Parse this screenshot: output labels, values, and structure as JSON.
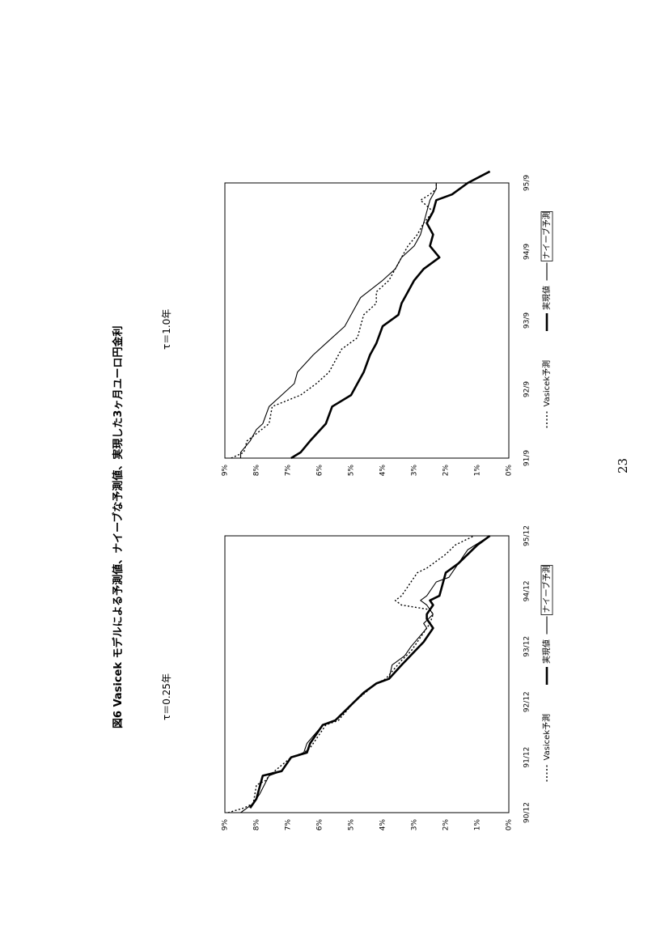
{
  "figure": {
    "title": "図6 Vasicek モデルによる予測値、ナイーブな予測値、実現した3ヶ月ユーロ円金利"
  },
  "page_number": "23",
  "legend_labels": {
    "vasicek": "Vasicek予測",
    "actual": "実現値",
    "naive": "ナイーブ予測"
  },
  "chart_data": [
    {
      "type": "line",
      "title": "τ＝0.25年",
      "xlabel": "",
      "ylabel": "",
      "x_range": [
        0,
        60
      ],
      "x_ticks": [
        {
          "pos": 0,
          "label": "90/12"
        },
        {
          "pos": 12,
          "label": "91/12"
        },
        {
          "pos": 24,
          "label": "92/12"
        },
        {
          "pos": 36,
          "label": "93/12"
        },
        {
          "pos": 48,
          "label": "94/12"
        },
        {
          "pos": 60,
          "label": "95/12"
        }
      ],
      "ylim": [
        0,
        9
      ],
      "y_ticks": [
        "0%",
        "1%",
        "2%",
        "3%",
        "4%",
        "5%",
        "6%",
        "7%",
        "8%",
        "9%"
      ],
      "grid": false,
      "legend": "bottom",
      "series": [
        {
          "name": "Vasicek予測",
          "style": "dotted",
          "points": [
            [
              0,
              8.9
            ],
            [
              1,
              8.4
            ],
            [
              2,
              8.1
            ],
            [
              6,
              8.0
            ],
            [
              7,
              7.7
            ],
            [
              8,
              7.6
            ],
            [
              12,
              6.9
            ],
            [
              13,
              6.5
            ],
            [
              14,
              6.3
            ],
            [
              19,
              5.8
            ],
            [
              20,
              5.4
            ],
            [
              24,
              4.9
            ],
            [
              28,
              4.2
            ],
            [
              29,
              3.9
            ],
            [
              33,
              3.4
            ],
            [
              35,
              3.1
            ],
            [
              41,
              2.5
            ],
            [
              43,
              2.4
            ],
            [
              44,
              2.5
            ],
            [
              45,
              3.4
            ],
            [
              46,
              3.6
            ],
            [
              47,
              3.4
            ],
            [
              50,
              3.1
            ],
            [
              52,
              2.9
            ],
            [
              53,
              2.6
            ],
            [
              56,
              2.0
            ],
            [
              58,
              1.7
            ],
            [
              60,
              1.1
            ]
          ]
        },
        {
          "name": "実現値",
          "style": "thick",
          "points": [
            [
              1,
              8.2
            ],
            [
              3,
              8.0
            ],
            [
              8,
              7.8
            ],
            [
              9,
              7.2
            ],
            [
              12,
              6.9
            ],
            [
              13,
              6.4
            ],
            [
              15,
              6.3
            ],
            [
              19,
              5.9
            ],
            [
              20,
              5.5
            ],
            [
              24,
              4.9
            ],
            [
              26,
              4.6
            ],
            [
              28,
              4.2
            ],
            [
              29,
              3.8
            ],
            [
              32,
              3.4
            ],
            [
              37,
              2.7
            ],
            [
              38,
              2.6
            ],
            [
              40,
              2.4
            ],
            [
              42,
              2.6
            ],
            [
              43,
              2.6
            ],
            [
              45,
              2.4
            ],
            [
              46,
              2.5
            ],
            [
              47,
              2.2
            ],
            [
              52,
              2.0
            ],
            [
              54,
              1.6
            ],
            [
              58,
              1.0
            ],
            [
              60,
              0.6
            ]
          ]
        },
        {
          "name": "ナイーブ予測",
          "style": "thin",
          "points": [
            [
              0,
              8.5
            ],
            [
              1,
              8.3
            ],
            [
              2,
              8.1
            ],
            [
              4,
              7.9
            ],
            [
              8,
              7.6
            ],
            [
              9,
              7.2
            ],
            [
              12,
              6.9
            ],
            [
              13,
              6.5
            ],
            [
              15,
              6.4
            ],
            [
              19,
              5.9
            ],
            [
              20,
              5.5
            ],
            [
              24,
              4.9
            ],
            [
              26,
              4.6
            ],
            [
              28,
              4.2
            ],
            [
              29,
              3.8
            ],
            [
              32,
              3.7
            ],
            [
              34,
              3.3
            ],
            [
              36,
              3.1
            ],
            [
              40,
              2.6
            ],
            [
              41,
              2.7
            ],
            [
              43,
              2.4
            ],
            [
              45,
              2.6
            ],
            [
              46,
              2.8
            ],
            [
              47,
              2.6
            ],
            [
              50,
              2.3
            ],
            [
              51,
              1.9
            ],
            [
              54,
              1.6
            ],
            [
              57,
              1.3
            ],
            [
              60,
              0.6
            ]
          ]
        }
      ]
    },
    {
      "type": "line",
      "title": "τ＝1.0年",
      "xlabel": "",
      "ylabel": "",
      "x_range": [
        0,
        48
      ],
      "x_ticks": [
        {
          "pos": 0,
          "label": "91/9"
        },
        {
          "pos": 12,
          "label": "92/9"
        },
        {
          "pos": 24,
          "label": "93/9"
        },
        {
          "pos": 36,
          "label": "94/9"
        },
        {
          "pos": 48,
          "label": "95/9"
        }
      ],
      "ylim": [
        0,
        9
      ],
      "y_ticks": [
        "0%",
        "1%",
        "2%",
        "3%",
        "4%",
        "5%",
        "6%",
        "7%",
        "8%",
        "9%"
      ],
      "grid": false,
      "legend": "bottom",
      "series": [
        {
          "name": "Vasicek予測",
          "style": "dotted",
          "points": [
            [
              0,
              8.8
            ],
            [
              1,
              8.4
            ],
            [
              3,
              8.3
            ],
            [
              6,
              7.6
            ],
            [
              9,
              7.5
            ],
            [
              11,
              6.6
            ],
            [
              13,
              6.1
            ],
            [
              15,
              5.7
            ],
            [
              19,
              5.3
            ],
            [
              21,
              4.8
            ],
            [
              23,
              4.7
            ],
            [
              25,
              4.6
            ],
            [
              27,
              4.2
            ],
            [
              29,
              4.2
            ],
            [
              31,
              3.8
            ],
            [
              33,
              3.6
            ],
            [
              35,
              3.4
            ],
            [
              37,
              3.2
            ],
            [
              39,
              2.9
            ],
            [
              41,
              2.7
            ],
            [
              43,
              2.4
            ],
            [
              45,
              2.8
            ],
            [
              46,
              2.5
            ],
            [
              47,
              2.3
            ],
            [
              48,
              2.3
            ]
          ]
        },
        {
          "name": "実現値",
          "style": "thick",
          "points": [
            [
              0,
              6.9
            ],
            [
              1,
              6.6
            ],
            [
              3,
              6.3
            ],
            [
              6,
              5.8
            ],
            [
              9,
              5.6
            ],
            [
              11,
              5.0
            ],
            [
              13,
              4.8
            ],
            [
              15,
              4.6
            ],
            [
              18,
              4.4
            ],
            [
              20,
              4.2
            ],
            [
              23,
              4.0
            ],
            [
              25,
              3.5
            ],
            [
              27,
              3.4
            ],
            [
              29,
              3.2
            ],
            [
              31,
              3.0
            ],
            [
              33,
              2.7
            ],
            [
              35,
              2.2
            ],
            [
              37,
              2.5
            ],
            [
              39,
              2.4
            ],
            [
              41,
              2.6
            ],
            [
              43,
              2.4
            ],
            [
              45,
              2.3
            ],
            [
              46,
              1.8
            ],
            [
              48,
              1.3
            ],
            [
              50,
              0.6
            ]
          ]
        },
        {
          "name": "ナイーブ予測",
          "style": "thin",
          "points": [
            [
              0,
              8.5
            ],
            [
              1,
              8.5
            ],
            [
              3,
              8.2
            ],
            [
              5,
              8.0
            ],
            [
              6,
              7.8
            ],
            [
              9,
              7.6
            ],
            [
              11,
              7.2
            ],
            [
              13,
              6.8
            ],
            [
              15,
              6.7
            ],
            [
              18,
              6.2
            ],
            [
              20,
              5.8
            ],
            [
              23,
              5.2
            ],
            [
              25,
              5.0
            ],
            [
              28,
              4.7
            ],
            [
              31,
              4.0
            ],
            [
              33,
              3.6
            ],
            [
              35,
              3.4
            ],
            [
              37,
              3.0
            ],
            [
              39,
              2.8
            ],
            [
              41,
              2.7
            ],
            [
              43,
              2.6
            ],
            [
              45,
              2.5
            ],
            [
              47,
              2.3
            ],
            [
              48,
              2.3
            ]
          ]
        }
      ]
    }
  ]
}
